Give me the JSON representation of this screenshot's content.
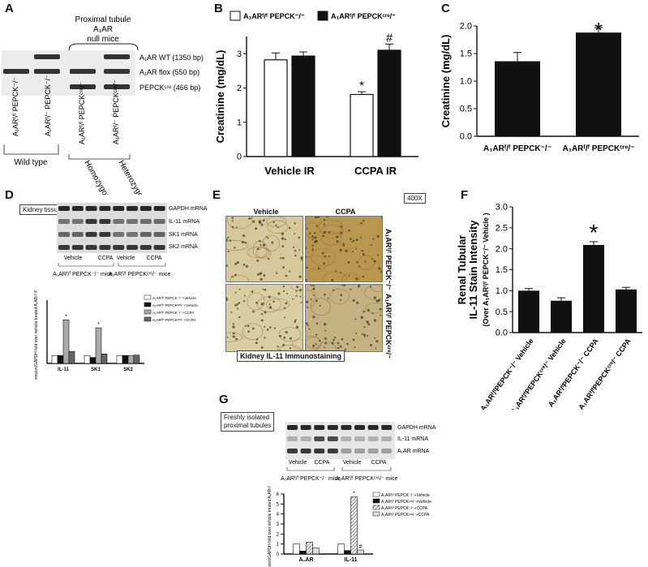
{
  "panels": {
    "A": {
      "label": "A",
      "group_header": [
        "Proximal tubule",
        "A₁AR",
        "null mice"
      ],
      "bands": [
        "A₁AR WT (1350 bp)",
        "A₁AR flox (550 bp)",
        "PEPCKᶜʳᵉ (466 bp)"
      ],
      "lanes": [
        "A₁ARᶠ/ᶠ PEPCK⁻/⁻",
        "A₁ARᶠ/⁻ PEPCK⁻/⁻",
        "A₁ARᶠ/ᶠ PEPCKᶜʳᵉ/⁻",
        "A₁ARᶠ/⁻ PEPCKᶜʳᵉ/⁻"
      ],
      "groups": [
        "Wild type",
        "Homozygous",
        "Heterozygous"
      ]
    },
    "B": {
      "label": "B"
    },
    "C": {
      "label": "C"
    },
    "D": {
      "label": "D",
      "tissue_box": "Kidney tissue",
      "bands": [
        "GAPDH mRNA",
        "IL-11 mRNA",
        "SK1 mRNA",
        "SK2 mRNA"
      ],
      "treatments": [
        "Vehicle",
        "CCPA",
        "Vehicle",
        "CCPA"
      ],
      "mice": [
        "A₁ARᶠ/ᶠ PEPCK⁻/⁻ mice",
        "A₁ARᶠ/ᶠ PEPCKᶜʳᵉ/⁻ mice"
      ],
      "legend": [
        "A₁ARᶠ/ᶠ PEPCK⁻/⁻+Vehicle",
        "A₁ARᶠ/ᶠ PEPCKᶜʳᵉ/⁻+Vehicle",
        "A₁ARᶠ/ᶠ PEPCK⁻/⁻+CCPA",
        "A₁ARᶠ/ᶠ PEPCKᶜʳᵉ/⁻+CCPA"
      ]
    },
    "E": {
      "label": "E",
      "magnification": "400X",
      "columns": [
        "Vehicle",
        "CCPA"
      ],
      "rows": [
        "A₁ARᶠ/ᶠ PEPCK⁻/⁻",
        "A₁ARᶠ/ᶠ PEPCKᶜʳᵉ/⁻"
      ],
      "caption": "Kidney IL-11 Immunostaining"
    },
    "F": {
      "label": "F"
    },
    "G": {
      "label": "G",
      "tissue_box": [
        "Freshly isolated",
        "proximal tubules"
      ],
      "bands": [
        "GAPDH mRNA",
        "IL-11 mRNA",
        "A₁AR mRNA"
      ],
      "treatments": [
        "Vehicle",
        "CCPA",
        "Vehicle",
        "CCPA"
      ],
      "mice": [
        "A₁ARᶠ/ᶠ PEPCK⁻/⁻ mice",
        "A₁ARᶠ/ᶠ PEPCKᶜʳᵉ/⁻ mice"
      ],
      "legend": [
        "A₁ARᶠ/ᶠ PEPCK⁻/⁻+Vehicle",
        "A₁ARᶠ/ᶠ PEPCKᶜʳᵉ/⁻+Vehicle",
        "A₁ARᶠ/ᶠ PEPCK⁻/⁻+CCPA",
        "A₁ARᶠ/ᶠ PEPCKᶜʳᵉ/⁻+CCPA"
      ]
    }
  },
  "colors": {
    "black": "#111111",
    "white": "#ffffff",
    "dgray": "#555555",
    "lgray": "#aaaaaa",
    "stainBg": "#c9b07a",
    "stainNuc": "#4a3a2a"
  },
  "chart_data": [
    {
      "id": "B",
      "type": "bar",
      "categories": [
        "Vehicle IR",
        "CCPA IR"
      ],
      "series": [
        {
          "name": "A₁ARᶠ/ᶠ PEPCK⁻/⁻",
          "values": [
            2.82,
            1.81
          ],
          "errors": [
            0.2,
            0.08
          ],
          "color": "#ffffff"
        },
        {
          "name": "A₁ARᶠ/ᶠ PEPCKᶜʳᵉ/⁻",
          "values": [
            2.93,
            3.1
          ],
          "errors": [
            0.12,
            0.18
          ],
          "color": "#111111"
        }
      ],
      "annotations": [
        {
          "category": 1,
          "series": 0,
          "text": "*"
        },
        {
          "category": 1,
          "series": 1,
          "text": "#"
        }
      ],
      "ylabel": "Creatinine  (mg/dL)",
      "ylim": [
        0,
        3.5
      ],
      "yticks": [
        0,
        1,
        2,
        3
      ]
    },
    {
      "id": "C",
      "type": "bar",
      "categories": [
        "A₁ARᶠ/ᶠ PEPCK⁻/⁻",
        "A₁ARᶠ/ᶠ PEPCKᶜʳᵉ/⁻"
      ],
      "values": [
        1.36,
        1.88
      ],
      "errors": [
        0.16,
        0.09
      ],
      "annotations": [
        {
          "index": 1,
          "text": "*"
        }
      ],
      "ylabel": "Creatinine (mg/dL)",
      "ylim": [
        0,
        2.0
      ],
      "yticks": [
        "0.0",
        "0.5",
        "1.0",
        "1.5",
        "2.0"
      ]
    },
    {
      "id": "D",
      "type": "bar",
      "categories": [
        "IL-11",
        "SK1",
        "SK2"
      ],
      "series": [
        {
          "values": [
            1.0,
            1.0,
            1.0
          ],
          "color": "#ffffff"
        },
        {
          "values": [
            1.0,
            0.75,
            1.0
          ],
          "color": "#111111"
        },
        {
          "values": [
            5.5,
            4.5,
            1.0
          ],
          "color": "#aaaaaa"
        },
        {
          "values": [
            1.5,
            1.2,
            1.05
          ],
          "color": "#666666"
        }
      ],
      "annotations": [
        {
          "category": 0,
          "series": 2,
          "text": "*"
        },
        {
          "category": 1,
          "series": 2,
          "text": "*"
        }
      ],
      "ylabel": "mRNA Expression/GAPDH fold over vehicle treated A₁ARᶠ/ᶠ PEPCK⁻/⁻ mice",
      "ylim": [
        0,
        8
      ],
      "yticks": []
    },
    {
      "id": "F",
      "type": "bar",
      "categories": [
        "A₁ARᶠ/ᶠPEPCK⁻/⁻ Vehicle",
        "A₁ARᶠ/ᶠPEPCKᶜʳᵉ/⁻ Vehicle",
        "A₁ARᶠ/ᶠPEPCK⁻/⁻ CCPA",
        "A₁ARᶠ/ᶠPEPCKᶜʳᵉ/⁻ CCPA"
      ],
      "values": [
        1.0,
        0.76,
        2.09,
        1.03
      ],
      "errors": [
        0.05,
        0.07,
        0.08,
        0.05
      ],
      "annotations": [
        {
          "index": 2,
          "text": "*"
        }
      ],
      "ylabel": [
        "Renal Tubular",
        "IL-11 Stain Intensity",
        "(Over A₁ARᶠ/ᶠ PEPCK⁻/⁻ Vehicle )"
      ],
      "ylim": [
        0,
        3.0
      ],
      "yticks": [
        "0.0",
        "0.5",
        "1.0",
        "1.5",
        "2.0",
        "2.5",
        "3.0"
      ]
    },
    {
      "id": "G",
      "type": "bar",
      "categories": [
        "A₁AR",
        "IL-11"
      ],
      "series": [
        {
          "values": [
            1.0,
            1.0
          ],
          "color": "#ffffff"
        },
        {
          "values": [
            0.3,
            0.35
          ],
          "color": "#111111"
        },
        {
          "values": [
            1.2,
            5.7
          ],
          "color": "hatch"
        },
        {
          "values": [
            0.6,
            0.4
          ],
          "color": "#dddddd"
        }
      ],
      "annotations": [
        {
          "category": 1,
          "series": 2,
          "text": "*"
        },
        {
          "category": 1,
          "series": 3,
          "text": "#"
        }
      ],
      "ylabel": "mRNA Expression/GAPDH fold over vehicle treated A₁ARᶠ/ᶠ PEPCK⁻/⁻ mice",
      "ylim": [
        0,
        6
      ],
      "yticks": [
        "0",
        "1",
        "2",
        "3",
        "4",
        "5",
        "6"
      ]
    }
  ]
}
